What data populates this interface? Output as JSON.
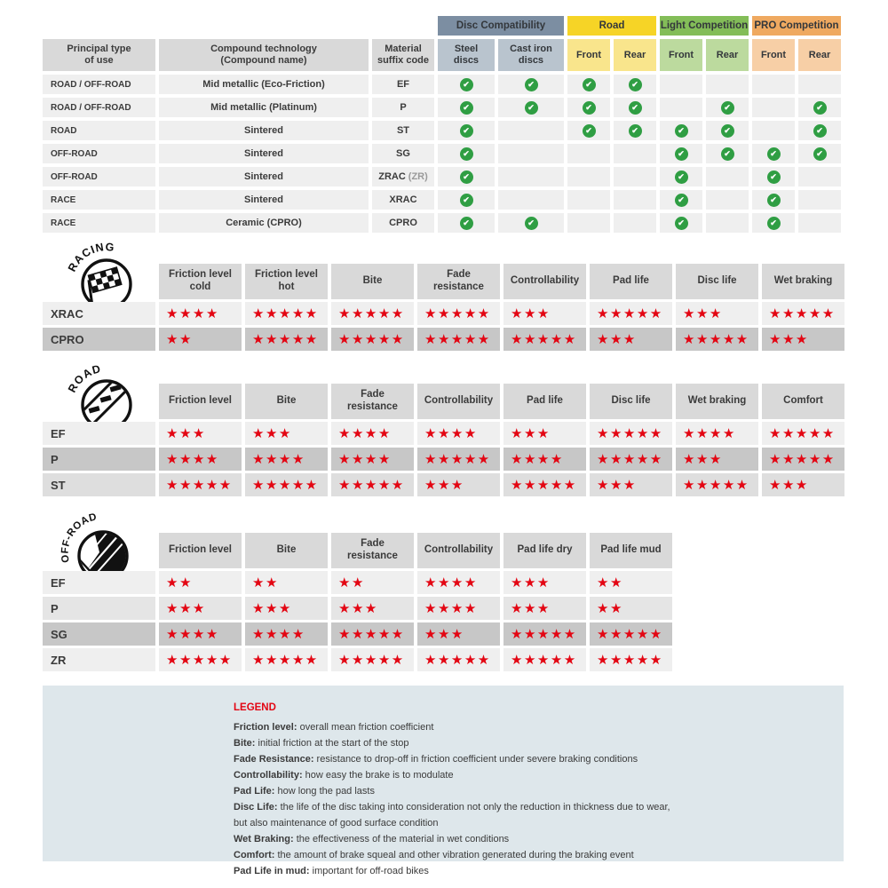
{
  "colors": {
    "star_red": "#e30613",
    "check_green": "#2f9e43",
    "header_gray": "#d9d9d9",
    "legend_bg": "#dee7eb"
  },
  "chart_data": [
    {
      "type": "table",
      "name": "compound-compatibility",
      "col_headers": [
        "Principal type\nof use",
        "Compound technology\n(Compound name)",
        "Material\nsuffix code"
      ],
      "groups": [
        {
          "label": "Disc Compatibility",
          "color": "#7c8ea2",
          "sub_color": "#b9c4ce",
          "subs": [
            "Steel\ndiscs",
            "Cast iron\ndiscs"
          ]
        },
        {
          "label": "Road",
          "color": "#f6d426",
          "sub_color": "#f9e58c",
          "subs": [
            "Front",
            "Rear"
          ]
        },
        {
          "label": "Light Competition",
          "color": "#83bd58",
          "sub_color": "#bcda9e",
          "subs": [
            "Front",
            "Rear"
          ]
        },
        {
          "label": "PRO Competition",
          "color": "#efa960",
          "sub_color": "#f7cfa6",
          "subs": [
            "Front",
            "Rear"
          ]
        }
      ],
      "check_columns": [
        "Steel discs",
        "Cast iron discs",
        "Road Front",
        "Road Rear",
        "Light Competition Front",
        "Light Competition Rear",
        "PRO Competition Front",
        "PRO Competition Rear"
      ],
      "rows": [
        {
          "use": "ROAD / OFF-ROAD",
          "tech": "Mid metallic (Eco-Friction)",
          "code": "EF",
          "code_note": "",
          "checks": [
            1,
            1,
            1,
            1,
            0,
            0,
            0,
            0
          ]
        },
        {
          "use": "ROAD / OFF-ROAD",
          "tech": "Mid metallic (Platinum)",
          "code": "P",
          "code_note": "",
          "checks": [
            1,
            1,
            1,
            1,
            0,
            1,
            0,
            1
          ]
        },
        {
          "use": "ROAD",
          "tech": "Sintered",
          "code": "ST",
          "code_note": "",
          "checks": [
            1,
            0,
            1,
            1,
            1,
            1,
            0,
            1
          ]
        },
        {
          "use": "OFF-ROAD",
          "tech": "Sintered",
          "code": "SG",
          "code_note": "",
          "checks": [
            1,
            0,
            0,
            0,
            1,
            1,
            1,
            1
          ]
        },
        {
          "use": "OFF-ROAD",
          "tech": "Sintered",
          "code": "ZRAC",
          "code_note": "(ZR)",
          "checks": [
            1,
            0,
            0,
            0,
            1,
            0,
            1,
            0
          ]
        },
        {
          "use": "RACE",
          "tech": "Sintered",
          "code": "XRAC",
          "code_note": "",
          "checks": [
            1,
            0,
            0,
            0,
            1,
            0,
            1,
            0
          ]
        },
        {
          "use": "RACE",
          "tech": "Ceramic (CPRO)",
          "code": "CPRO",
          "code_note": "",
          "checks": [
            1,
            1,
            0,
            0,
            1,
            0,
            1,
            0
          ]
        }
      ]
    },
    {
      "type": "table",
      "name": "racing-ratings",
      "icon_label": "RACING",
      "columns": [
        "Friction level cold",
        "Friction level hot",
        "Bite",
        "Fade resistance",
        "Controllability",
        "Pad life",
        "Disc life",
        "Wet braking"
      ],
      "max_stars": 5,
      "rows": [
        {
          "code": "XRAC",
          "shade": "light",
          "stars": [
            4,
            5,
            5,
            5,
            3,
            5,
            3,
            5
          ]
        },
        {
          "code": "CPRO",
          "shade": "dark",
          "stars": [
            2,
            5,
            5,
            5,
            5,
            3,
            5,
            3
          ]
        }
      ]
    },
    {
      "type": "table",
      "name": "road-ratings",
      "icon_label": "ROAD",
      "columns": [
        "Friction level",
        "Bite",
        "Fade resistance",
        "Controllability",
        "Pad life",
        "Disc life",
        "Wet braking",
        "Comfort"
      ],
      "max_stars": 5,
      "rows": [
        {
          "code": "EF",
          "shade": "light",
          "stars": [
            3,
            3,
            4,
            4,
            3,
            5,
            4,
            5
          ]
        },
        {
          "code": "P",
          "shade": "dark",
          "stars": [
            4,
            4,
            4,
            5,
            4,
            5,
            3,
            5
          ]
        },
        {
          "code": "ST",
          "shade": "mid",
          "stars": [
            5,
            5,
            5,
            3,
            5,
            3,
            5,
            3
          ]
        }
      ]
    },
    {
      "type": "table",
      "name": "offroad-ratings",
      "icon_label": "OFF-ROAD",
      "columns": [
        "Friction level",
        "Bite",
        "Fade resistance",
        "Controllability",
        "Pad life dry",
        "Pad life mud"
      ],
      "max_stars": 5,
      "rows": [
        {
          "code": "EF",
          "shade": "light",
          "stars": [
            2,
            2,
            2,
            4,
            3,
            2
          ]
        },
        {
          "code": "P",
          "shade": "mid2",
          "stars": [
            3,
            3,
            3,
            4,
            3,
            2
          ]
        },
        {
          "code": "SG",
          "shade": "dark",
          "stars": [
            4,
            4,
            5,
            3,
            5,
            5
          ]
        },
        {
          "code": "ZR",
          "shade": "light",
          "stars": [
            5,
            5,
            5,
            5,
            5,
            5
          ]
        }
      ]
    }
  ],
  "legend": {
    "title": "LEGEND",
    "items": [
      {
        "term": "Friction level",
        "desc": "overall mean friction coefficient"
      },
      {
        "term": "Bite",
        "desc": "initial friction at the start of the stop"
      },
      {
        "term": "Fade Resistance",
        "desc": "resistance to drop-off in friction coefficient under severe braking conditions"
      },
      {
        "term": "Controllability",
        "desc": "how easy the brake is to modulate"
      },
      {
        "term": "Pad Life",
        "desc": "how long the pad lasts"
      },
      {
        "term": "Disc Life",
        "desc": "the life of the disc taking into consideration not only the reduction in thickness due to wear,"
      },
      {
        "term": "",
        "desc": "but also maintenance of good surface condition"
      },
      {
        "term": "Wet Braking",
        "desc": "the effectiveness of the material in wet conditions"
      },
      {
        "term": "Comfort",
        "desc": "the amount of brake squeal and other vibration generated during the braking event"
      },
      {
        "term": "Pad Life in mud",
        "desc": "important for off-road bikes"
      }
    ]
  }
}
